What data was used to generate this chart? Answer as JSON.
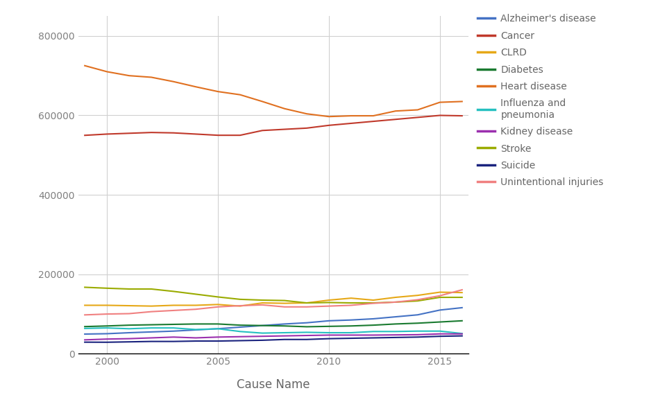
{
  "years": [
    1999,
    2000,
    2001,
    2002,
    2003,
    2004,
    2005,
    2006,
    2007,
    2008,
    2009,
    2010,
    2011,
    2012,
    2013,
    2014,
    2015,
    2016
  ],
  "series": {
    "Alzheimer's disease": [
      49558,
      50500,
      53000,
      55000,
      57000,
      60000,
      63000,
      67000,
      71000,
      75000,
      78000,
      83000,
      85000,
      88000,
      93000,
      98000,
      110000,
      116000
    ],
    "Cancer": [
      549838,
      553000,
      555000,
      557000,
      556000,
      553000,
      550000,
      550000,
      562000,
      565000,
      568000,
      575000,
      580000,
      585000,
      590000,
      595000,
      600000,
      599000
    ],
    "CLRD": [
      122009,
      122000,
      121000,
      120000,
      122000,
      122000,
      124000,
      120000,
      128000,
      127000,
      128000,
      135000,
      140000,
      135000,
      142000,
      147000,
      155000,
      154000
    ],
    "Diabetes": [
      68399,
      70000,
      72000,
      73000,
      74000,
      75000,
      75000,
      72000,
      71000,
      70000,
      68000,
      69000,
      70000,
      72000,
      75000,
      77000,
      80000,
      83000
    ],
    "Heart disease": [
      725192,
      710000,
      700000,
      696000,
      685000,
      672000,
      660000,
      652000,
      635000,
      617000,
      604000,
      597000,
      599000,
      599000,
      611000,
      614000,
      633000,
      635000
    ],
    "Influenza and\npneumonia": [
      63730,
      65000,
      63000,
      65000,
      65000,
      61000,
      63000,
      56000,
      52000,
      53000,
      54000,
      53000,
      53000,
      56000,
      56000,
      57000,
      57000,
      51000
    ],
    "Kidney disease": [
      35000,
      37000,
      38000,
      40000,
      42000,
      40000,
      42000,
      43000,
      44000,
      45000,
      46000,
      47000,
      47000,
      47000,
      47500,
      48000,
      50000,
      50000
    ],
    "Stroke": [
      167366,
      165000,
      163000,
      163000,
      157000,
      150000,
      143000,
      137000,
      135000,
      134000,
      128000,
      129000,
      128000,
      128000,
      130000,
      133000,
      142000,
      142000
    ],
    "Suicide": [
      29199,
      29000,
      30000,
      31000,
      31000,
      32000,
      32000,
      33000,
      34000,
      36000,
      36000,
      38000,
      39000,
      40000,
      41000,
      42000,
      44000,
      45000
    ],
    "Unintentional injuries": [
      97860,
      100000,
      101000,
      106000,
      109000,
      112000,
      118000,
      121000,
      123000,
      118000,
      118000,
      120000,
      122000,
      127000,
      130000,
      136000,
      146000,
      161000
    ]
  },
  "colors": {
    "Alzheimer's disease": "#4472c4",
    "Cancer": "#c0392b",
    "CLRD": "#e6a817",
    "Diabetes": "#1a7a30",
    "Heart disease": "#e07020",
    "Influenza and\npneumonia": "#26c0c0",
    "Kidney disease": "#9b2fae",
    "Stroke": "#9aab00",
    "Suicide": "#1a237e",
    "Unintentional injuries": "#f08080"
  },
  "xlabel": "Cause Name",
  "ylim": [
    0,
    850000
  ],
  "yticks": [
    0,
    200000,
    400000,
    600000,
    800000
  ],
  "xticks": [
    2000,
    2005,
    2010,
    2015
  ],
  "background_color": "#ffffff",
  "grid_color": "#d0d0d0",
  "tick_color": "#808080",
  "label_color": "#666666"
}
